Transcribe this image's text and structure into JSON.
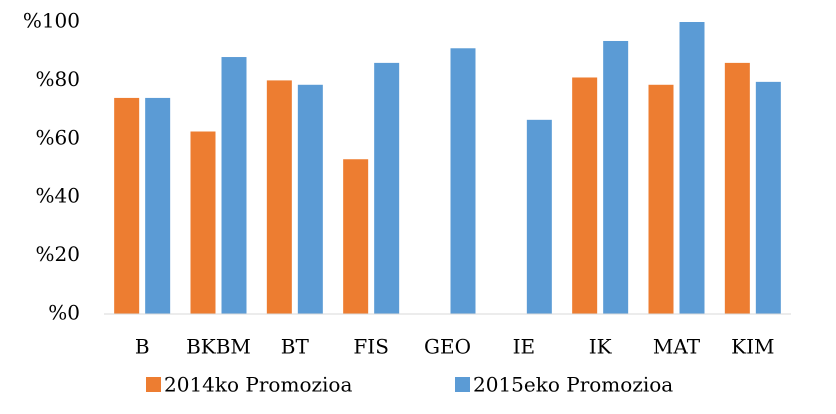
{
  "chart_data": {
    "type": "bar",
    "categories": [
      "B",
      "BKBM",
      "BT",
      "FIS",
      "GEO",
      "IE",
      "IK",
      "MAT",
      "KIM"
    ],
    "series": [
      {
        "name": "2014ko Promozioa",
        "color": "#ed7d31",
        "values": [
          74,
          62.5,
          80,
          53,
          null,
          null,
          81,
          78.5,
          86
        ]
      },
      {
        "name": "2015eko Promozioa",
        "color": "#5b9bd5",
        "values": [
          74,
          88,
          78.5,
          86,
          91,
          66.5,
          93.5,
          100,
          79.5
        ]
      }
    ],
    "ylim": [
      0,
      100
    ],
    "yticks": [
      {
        "value": 0,
        "label": "%0"
      },
      {
        "value": 20,
        "label": "%20"
      },
      {
        "value": 40,
        "label": "%40"
      },
      {
        "value": 60,
        "label": "%60"
      },
      {
        "value": 80,
        "label": "%80"
      },
      {
        "value": 100,
        "label": "%100"
      }
    ],
    "grid": false,
    "legend": "bottom"
  }
}
